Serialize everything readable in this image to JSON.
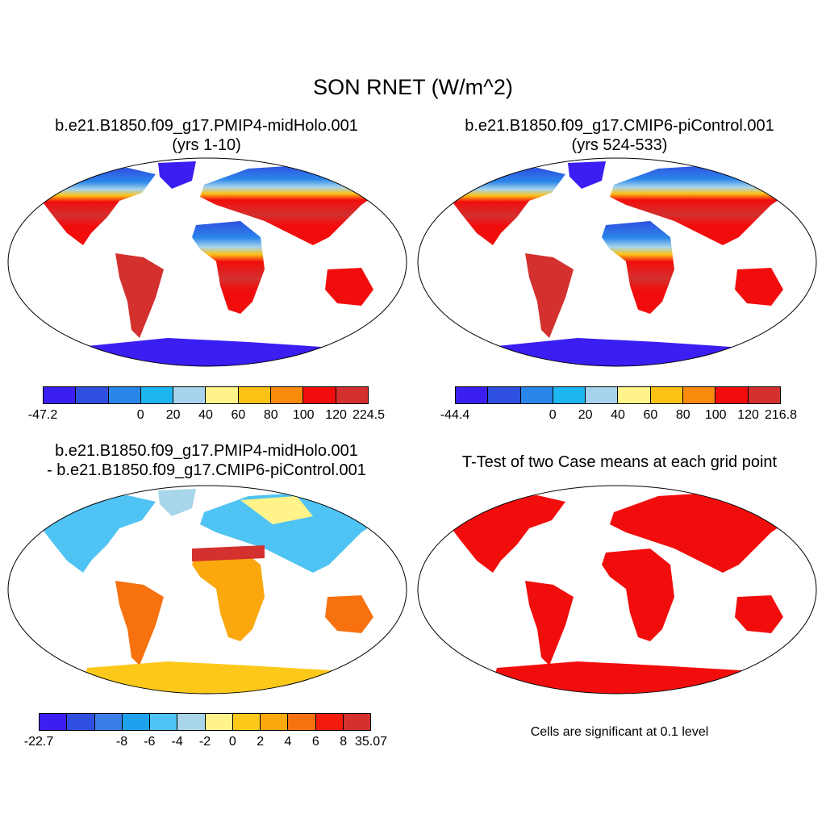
{
  "title": "SON RNET (W/m^2)",
  "panels": [
    {
      "id": "p1",
      "title_line1": "b.e21.B1850.f09_g17.PMIP4-midHolo.001",
      "title_line2": "(yrs 1-10)",
      "colorbar": {
        "colors": [
          "#3b1ef2",
          "#2f4fe0",
          "#2b86ea",
          "#1eb6f0",
          "#a7d4ec",
          "#fff38a",
          "#fcc216",
          "#f98a0c",
          "#f20d0d",
          "#d3302e"
        ],
        "labels": [
          "-47.2",
          "0",
          "20",
          "40",
          "60",
          "80",
          "100",
          "120",
          "224.5"
        ]
      }
    },
    {
      "id": "p2",
      "title_line1": "b.e21.B1850.f09_g17.CMIP6-piControl.001",
      "title_line2": "(yrs 524-533)",
      "colorbar": {
        "colors": [
          "#3b1ef2",
          "#2f4fe0",
          "#2b86ea",
          "#1eb6f0",
          "#a7d4ec",
          "#fff38a",
          "#fcc216",
          "#f98a0c",
          "#f20d0d",
          "#d3302e"
        ],
        "labels": [
          "-44.4",
          "0",
          "20",
          "40",
          "60",
          "80",
          "100",
          "120",
          "216.8"
        ]
      }
    },
    {
      "id": "p3",
      "title_line1": "b.e21.B1850.f09_g17.PMIP4-midHolo.001",
      "title_line2": "- b.e21.B1850.f09_g17.CMIP6-piControl.001",
      "colorbar": {
        "colors": [
          "#3b1ef2",
          "#2f4fe0",
          "#3b7de6",
          "#1ea2ee",
          "#4fc3f3",
          "#a8d5ea",
          "#fff38a",
          "#fcc91a",
          "#fba80f",
          "#f7710e",
          "#f21b0d",
          "#d3302e"
        ],
        "labels": [
          "-22.7",
          "-8",
          "-6",
          "-4",
          "-2",
          "0",
          "2",
          "4",
          "6",
          "8",
          "35.07"
        ]
      }
    },
    {
      "id": "p4",
      "title_line1": "T-Test of two Case means at each grid point",
      "note": "Cells are significant at 0.1 level",
      "colors": {
        "significant": "#f20d0d"
      }
    }
  ]
}
